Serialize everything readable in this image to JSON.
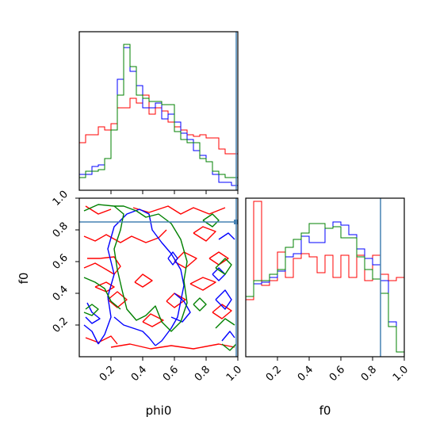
{
  "chart_data": {
    "type": "corner",
    "parameters": [
      "phi0",
      "f0"
    ],
    "xlabels": [
      "phi0",
      "f0"
    ],
    "ylabel": "f0",
    "ticks": [
      0.2,
      0.4,
      0.6,
      0.8,
      1.0
    ],
    "tick_labels": [
      "0.2",
      "0.4",
      "0.6",
      "0.8",
      "1.0"
    ],
    "xlim": [
      0,
      1
    ],
    "ylim": [
      0,
      1
    ],
    "truth_lines": {
      "phi0": 0.99,
      "f0": 0.85
    },
    "colors": {
      "red": "#ff0000",
      "blue": "#0000ff",
      "green": "#008000",
      "truth": "#4682b4"
    },
    "hist_phi0": {
      "bin_edges": [
        0.0,
        0.04,
        0.08,
        0.12,
        0.16,
        0.2,
        0.24,
        0.28,
        0.32,
        0.36,
        0.4,
        0.44,
        0.48,
        0.52,
        0.56,
        0.6,
        0.64,
        0.68,
        0.72,
        0.76,
        0.8,
        0.84,
        0.88,
        0.92,
        0.96,
        1.0
      ],
      "series": [
        {
          "color": "red",
          "values": [
            0.3,
            0.35,
            0.35,
            0.4,
            0.38,
            0.42,
            0.52,
            0.52,
            0.58,
            0.55,
            0.6,
            0.48,
            0.52,
            0.5,
            0.43,
            0.4,
            0.38,
            0.35,
            0.34,
            0.35,
            0.33,
            0.33,
            0.26,
            0.23,
            0.23
          ]
        },
        {
          "color": "blue",
          "values": [
            0.1,
            0.1,
            0.15,
            0.16,
            0.2,
            0.38,
            0.7,
            0.9,
            0.75,
            0.66,
            0.52,
            0.52,
            0.55,
            0.45,
            0.48,
            0.43,
            0.36,
            0.32,
            0.25,
            0.22,
            0.18,
            0.1,
            0.05,
            0.05,
            0.03
          ]
        },
        {
          "color": "green",
          "values": [
            0.08,
            0.12,
            0.12,
            0.13,
            0.2,
            0.38,
            0.6,
            0.92,
            0.78,
            0.6,
            0.58,
            0.56,
            0.56,
            0.54,
            0.54,
            0.37,
            0.32,
            0.3,
            0.3,
            0.2,
            0.18,
            0.12,
            0.1,
            0.08,
            0.08
          ]
        }
      ]
    },
    "hist_f0": {
      "bin_edges": [
        0.0,
        0.05,
        0.1,
        0.15,
        0.2,
        0.25,
        0.3,
        0.35,
        0.4,
        0.45,
        0.5,
        0.55,
        0.6,
        0.65,
        0.7,
        0.75,
        0.8,
        0.85,
        0.9,
        0.95,
        1.0
      ],
      "series": [
        {
          "color": "red",
          "values": [
            0.36,
            0.98,
            0.45,
            0.48,
            0.66,
            0.5,
            0.62,
            0.65,
            0.63,
            0.53,
            0.64,
            0.5,
            0.64,
            0.5,
            0.64,
            0.48,
            0.64,
            0.52,
            0.48,
            0.5
          ]
        },
        {
          "color": "blue",
          "values": [
            0.38,
            0.46,
            0.47,
            0.5,
            0.54,
            0.63,
            0.65,
            0.76,
            0.72,
            0.72,
            0.81,
            0.85,
            0.83,
            0.77,
            0.68,
            0.62,
            0.58,
            0.48,
            0.22,
            0.03
          ]
        },
        {
          "color": "green",
          "values": [
            0.38,
            0.48,
            0.48,
            0.52,
            0.55,
            0.69,
            0.74,
            0.78,
            0.84,
            0.84,
            0.81,
            0.82,
            0.75,
            0.75,
            0.63,
            0.55,
            0.49,
            0.4,
            0.19,
            0.03
          ]
        }
      ]
    },
    "contours": [
      {
        "color": "red",
        "polylines": [
          [
            [
              0.03,
              0.56
            ],
            [
              0.1,
              0.59
            ],
            [
              0.17,
              0.55
            ],
            [
              0.22,
              0.52
            ],
            [
              0.26,
              0.57
            ],
            [
              0.22,
              0.63
            ],
            [
              0.13,
              0.62
            ],
            [
              0.05,
              0.62
            ]
          ],
          [
            [
              0.03,
              0.76
            ],
            [
              0.1,
              0.73
            ],
            [
              0.17,
              0.77
            ],
            [
              0.26,
              0.72
            ],
            [
              0.33,
              0.76
            ],
            [
              0.42,
              0.72
            ],
            [
              0.5,
              0.75
            ],
            [
              0.55,
              0.8
            ]
          ],
          [
            [
              0.18,
              0.36
            ],
            [
              0.24,
              0.41
            ],
            [
              0.3,
              0.36
            ],
            [
              0.24,
              0.31
            ],
            [
              0.18,
              0.36
            ]
          ],
          [
            [
              0.1,
              0.44
            ],
            [
              0.17,
              0.47
            ],
            [
              0.22,
              0.44
            ],
            [
              0.17,
              0.41
            ],
            [
              0.1,
              0.44
            ]
          ],
          [
            [
              0.4,
              0.22
            ],
            [
              0.45,
              0.27
            ],
            [
              0.53,
              0.23
            ],
            [
              0.46,
              0.19
            ],
            [
              0.4,
              0.22
            ]
          ],
          [
            [
              0.55,
              0.35
            ],
            [
              0.6,
              0.4
            ],
            [
              0.67,
              0.36
            ],
            [
              0.6,
              0.31
            ],
            [
              0.55,
              0.35
            ]
          ],
          [
            [
              0.6,
              0.6
            ],
            [
              0.66,
              0.66
            ],
            [
              0.74,
              0.62
            ],
            [
              0.67,
              0.56
            ],
            [
              0.6,
              0.6
            ]
          ],
          [
            [
              0.7,
              0.46
            ],
            [
              0.78,
              0.5
            ],
            [
              0.86,
              0.47
            ],
            [
              0.78,
              0.42
            ],
            [
              0.7,
              0.46
            ]
          ],
          [
            [
              0.72,
              0.78
            ],
            [
              0.78,
              0.82
            ],
            [
              0.86,
              0.79
            ],
            [
              0.8,
              0.73
            ],
            [
              0.72,
              0.78
            ]
          ],
          [
            [
              0.2,
              0.06
            ],
            [
              0.32,
              0.08
            ],
            [
              0.45,
              0.05
            ],
            [
              0.58,
              0.07
            ],
            [
              0.72,
              0.05
            ],
            [
              0.88,
              0.08
            ],
            [
              0.98,
              0.06
            ]
          ],
          [
            [
              0.04,
              0.12
            ],
            [
              0.12,
              0.09
            ],
            [
              0.2,
              0.13
            ],
            [
              0.24,
              0.08
            ]
          ],
          [
            [
              0.35,
              0.47
            ],
            [
              0.4,
              0.52
            ],
            [
              0.46,
              0.48
            ],
            [
              0.4,
              0.44
            ],
            [
              0.35,
              0.47
            ]
          ],
          [
            [
              0.84,
              0.28
            ],
            [
              0.9,
              0.33
            ],
            [
              0.96,
              0.29
            ],
            [
              0.9,
              0.24
            ],
            [
              0.84,
              0.28
            ]
          ],
          [
            [
              0.34,
              0.94
            ],
            [
              0.44,
              0.91
            ],
            [
              0.56,
              0.95
            ],
            [
              0.64,
              0.9
            ],
            [
              0.72,
              0.94
            ],
            [
              0.82,
              0.9
            ],
            [
              0.92,
              0.94
            ]
          ],
          [
            [
              0.82,
              0.62
            ],
            [
              0.88,
              0.66
            ],
            [
              0.94,
              0.62
            ],
            [
              0.88,
              0.58
            ],
            [
              0.82,
              0.62
            ]
          ],
          [
            [
              0.04,
              0.95
            ],
            [
              0.12,
              0.9
            ],
            [
              0.2,
              0.93
            ]
          ]
        ]
      },
      {
        "color": "blue",
        "polylines": [
          [
            [
              0.12,
              0.08
            ],
            [
              0.16,
              0.14
            ],
            [
              0.2,
              0.25
            ],
            [
              0.18,
              0.38
            ],
            [
              0.22,
              0.52
            ],
            [
              0.18,
              0.68
            ],
            [
              0.22,
              0.82
            ],
            [
              0.3,
              0.9
            ],
            [
              0.38,
              0.93
            ],
            [
              0.44,
              0.9
            ],
            [
              0.46,
              0.8
            ],
            [
              0.52,
              0.72
            ],
            [
              0.58,
              0.65
            ],
            [
              0.64,
              0.55
            ],
            [
              0.66,
              0.45
            ],
            [
              0.64,
              0.35
            ],
            [
              0.62,
              0.25
            ],
            [
              0.58,
              0.18
            ],
            [
              0.52,
              0.1
            ],
            [
              0.48,
              0.07
            ]
          ],
          [
            [
              0.03,
              0.2
            ],
            [
              0.08,
              0.16
            ],
            [
              0.12,
              0.08
            ]
          ],
          [
            [
              0.48,
              0.07
            ],
            [
              0.44,
              0.12
            ],
            [
              0.4,
              0.16
            ],
            [
              0.34,
              0.18
            ],
            [
              0.28,
              0.2
            ],
            [
              0.22,
              0.25
            ]
          ],
          [
            [
              0.05,
              0.34
            ],
            [
              0.08,
              0.28
            ],
            [
              0.13,
              0.24
            ],
            [
              0.08,
              0.21
            ],
            [
              0.04,
              0.25
            ]
          ],
          [
            [
              0.6,
              0.4
            ],
            [
              0.66,
              0.35
            ],
            [
              0.7,
              0.28
            ],
            [
              0.65,
              0.22
            ],
            [
              0.58,
              0.25
            ]
          ],
          [
            [
              0.88,
              0.74
            ],
            [
              0.94,
              0.78
            ],
            [
              0.98,
              0.74
            ]
          ],
          [
            [
              0.86,
              0.36
            ],
            [
              0.92,
              0.42
            ],
            [
              0.96,
              0.36
            ],
            [
              0.92,
              0.3
            ],
            [
              0.86,
              0.36
            ]
          ],
          [
            [
              0.9,
              0.1
            ],
            [
              0.95,
              0.16
            ],
            [
              0.98,
              0.12
            ]
          ],
          [
            [
              0.56,
              0.62
            ],
            [
              0.59,
              0.66
            ],
            [
              0.62,
              0.62
            ],
            [
              0.59,
              0.58
            ],
            [
              0.56,
              0.62
            ]
          ],
          [
            [
              0.84,
              0.52
            ],
            [
              0.88,
              0.56
            ],
            [
              0.92,
              0.52
            ],
            [
              0.88,
              0.48
            ],
            [
              0.84,
              0.52
            ]
          ]
        ]
      },
      {
        "color": "green",
        "polylines": [
          [
            [
              0.22,
              0.95
            ],
            [
              0.28,
              0.9
            ],
            [
              0.26,
              0.8
            ],
            [
              0.22,
              0.68
            ],
            [
              0.24,
              0.55
            ],
            [
              0.27,
              0.42
            ],
            [
              0.3,
              0.3
            ],
            [
              0.36,
              0.23
            ],
            [
              0.42,
              0.26
            ],
            [
              0.48,
              0.32
            ],
            [
              0.52,
              0.22
            ],
            [
              0.58,
              0.16
            ],
            [
              0.64,
              0.22
            ],
            [
              0.68,
              0.34
            ],
            [
              0.66,
              0.48
            ],
            [
              0.68,
              0.6
            ],
            [
              0.64,
              0.74
            ],
            [
              0.58,
              0.84
            ],
            [
              0.5,
              0.9
            ],
            [
              0.42,
              0.88
            ],
            [
              0.36,
              0.92
            ],
            [
              0.28,
              0.95
            ],
            [
              0.22,
              0.95
            ]
          ],
          [
            [
              0.03,
              0.92
            ],
            [
              0.12,
              0.96
            ],
            [
              0.22,
              0.95
            ]
          ],
          [
            [
              0.03,
              0.5
            ],
            [
              0.1,
              0.47
            ],
            [
              0.16,
              0.43
            ],
            [
              0.2,
              0.35
            ],
            [
              0.26,
              0.3
            ]
          ],
          [
            [
              0.03,
              0.28
            ],
            [
              0.08,
              0.26
            ],
            [
              0.12,
              0.3
            ],
            [
              0.08,
              0.33
            ],
            [
              0.04,
              0.3
            ]
          ],
          [
            [
              0.78,
              0.86
            ],
            [
              0.84,
              0.9
            ],
            [
              0.88,
              0.86
            ],
            [
              0.84,
              0.82
            ],
            [
              0.78,
              0.86
            ]
          ],
          [
            [
              0.86,
              0.56
            ],
            [
              0.92,
              0.62
            ],
            [
              0.96,
              0.58
            ],
            [
              0.92,
              0.52
            ],
            [
              0.86,
              0.56
            ]
          ],
          [
            [
              0.86,
              0.18
            ],
            [
              0.92,
              0.24
            ],
            [
              0.98,
              0.2
            ]
          ],
          [
            [
              0.9,
              0.08
            ],
            [
              0.95,
              0.04
            ],
            [
              0.99,
              0.08
            ]
          ],
          [
            [
              0.72,
              0.33
            ],
            [
              0.76,
              0.37
            ],
            [
              0.8,
              0.33
            ],
            [
              0.76,
              0.29
            ],
            [
              0.72,
              0.33
            ]
          ]
        ]
      }
    ]
  }
}
